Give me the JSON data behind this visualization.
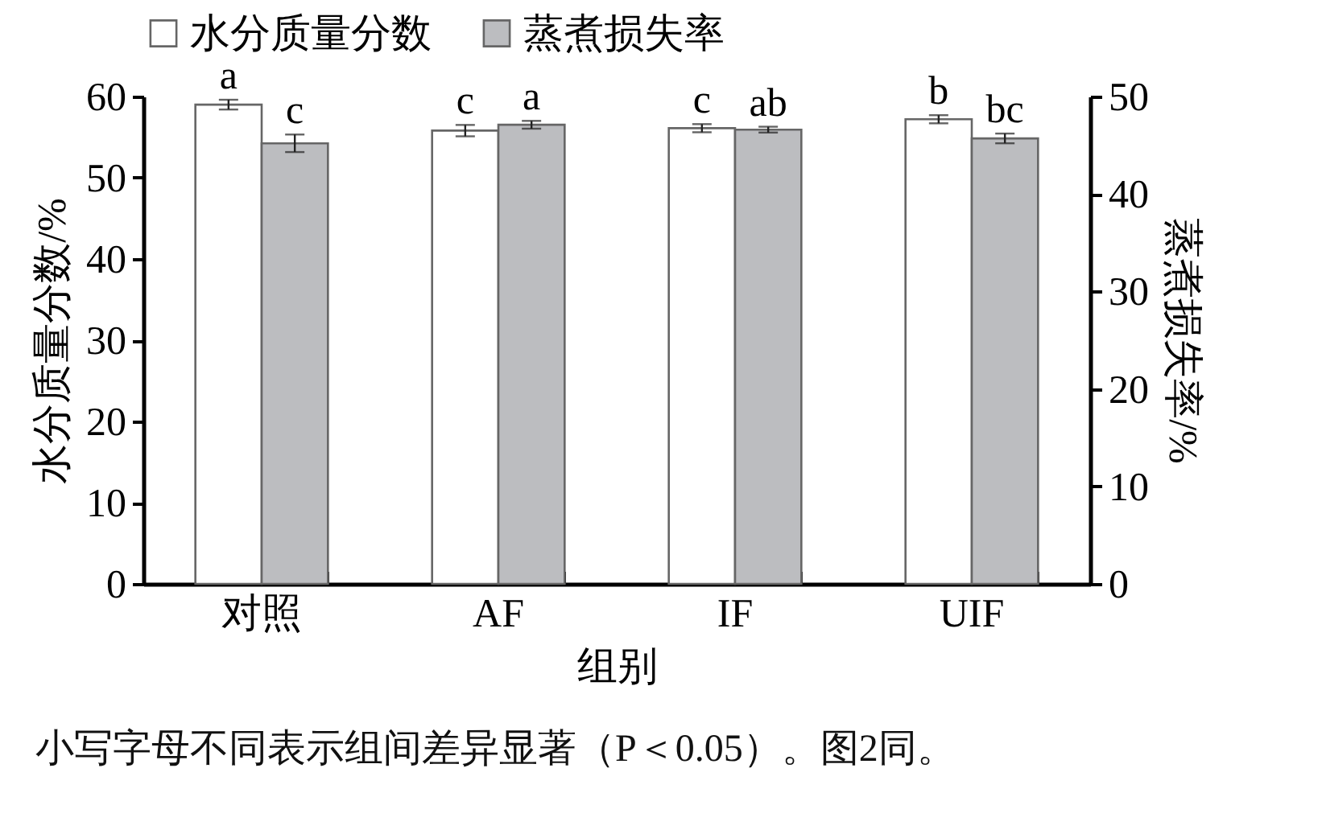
{
  "chart_data": {
    "type": "bar",
    "categories": [
      "对照",
      "AF",
      "IF",
      "UIF"
    ],
    "xlabel": "组别",
    "ylabel": "水分质量分数/%",
    "y2label": "蒸煮损失率/%",
    "ylim": [
      0,
      60
    ],
    "yticks": [
      0,
      10,
      20,
      30,
      40,
      50,
      60
    ],
    "y2lim": [
      0,
      50
    ],
    "y2ticks": [
      0,
      10,
      20,
      30,
      40,
      50
    ],
    "legend": "top",
    "annotations": [
      "小写字母不同表示组间差异显著（P＜0.05）。图2同。"
    ],
    "series": [
      {
        "name": "水分质量分数",
        "color": "#ffffff",
        "values": [
          59.0,
          55.8,
          56.1,
          57.2
        ],
        "errors": [
          0.6,
          0.7,
          0.5,
          0.5
        ],
        "value_labels": [
          "a",
          "c",
          "c",
          "b"
        ]
      },
      {
        "name": "蒸煮损失率",
        "color": "#bcbdc0",
        "values": [
          45.2,
          47.1,
          46.6,
          45.7
        ],
        "errors": [
          0.9,
          0.4,
          0.3,
          0.5
        ],
        "value_labels": [
          "c",
          "a",
          "ab",
          "bc"
        ],
        "axis": "y2"
      }
    ]
  }
}
